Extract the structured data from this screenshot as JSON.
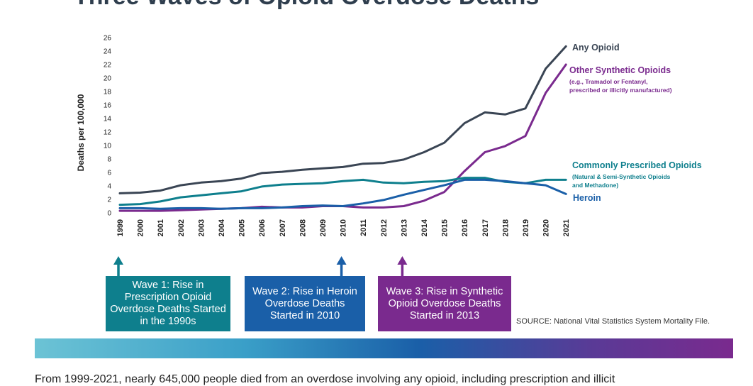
{
  "title": "Three Waves of Opioid Overdose Deaths",
  "chart_data": {
    "type": "line",
    "ylabel": "Deaths per 100,000",
    "xlabel": "",
    "ylim": [
      0,
      26
    ],
    "yticks": [
      0,
      2,
      4,
      6,
      8,
      10,
      12,
      14,
      16,
      18,
      20,
      22,
      24,
      26
    ],
    "x": [
      "1999",
      "2000",
      "2001",
      "2002",
      "2003",
      "2004",
      "2005",
      "2006",
      "2007",
      "2008",
      "2009",
      "2010",
      "2011",
      "2012",
      "2013",
      "2014",
      "2015",
      "2016",
      "2017",
      "2018",
      "2019",
      "2020",
      "2021"
    ],
    "series": [
      {
        "name": "Any Opioid",
        "color": "#3a4554",
        "values": [
          2.9,
          3.0,
          3.3,
          4.1,
          4.5,
          4.7,
          5.1,
          5.9,
          6.1,
          6.4,
          6.6,
          6.8,
          7.3,
          7.4,
          7.9,
          9.0,
          10.4,
          13.3,
          14.9,
          14.6,
          15.5,
          21.4,
          24.7
        ],
        "label_lines": [
          {
            "text": "Any Opioid",
            "size": "large"
          }
        ]
      },
      {
        "name": "Other Synthetic Opioids",
        "color": "#7a2a8e",
        "values": [
          0.3,
          0.3,
          0.3,
          0.4,
          0.5,
          0.6,
          0.7,
          0.9,
          0.8,
          0.8,
          1.0,
          1.0,
          0.8,
          0.8,
          1.0,
          1.8,
          3.1,
          6.2,
          9.0,
          9.9,
          11.4,
          17.8,
          22.0
        ],
        "label_lines": [
          {
            "text": "Other Synthetic Opioids",
            "size": "large"
          },
          {
            "text": "(e.g., Tramadol or Fentanyl,",
            "size": "small"
          },
          {
            "text": "prescribed or illicitly manufactured)",
            "size": "small"
          }
        ]
      },
      {
        "name": "Commonly Prescribed Opioids",
        "color": "#0e7f8d",
        "values": [
          1.2,
          1.3,
          1.7,
          2.3,
          2.6,
          2.9,
          3.2,
          3.9,
          4.2,
          4.3,
          4.4,
          4.7,
          4.9,
          4.5,
          4.4,
          4.6,
          4.7,
          5.2,
          5.2,
          4.6,
          4.4,
          4.9,
          4.9
        ],
        "label_lines": [
          {
            "text": "Commonly Prescribed Opioids",
            "size": "large"
          },
          {
            "text": "(Natural & Semi-Synthetic Opioids",
            "size": "small"
          },
          {
            "text": "and Methadone)",
            "size": "small"
          }
        ]
      },
      {
        "name": "Heroin",
        "color": "#1a5fa8",
        "values": [
          0.7,
          0.7,
          0.6,
          0.7,
          0.7,
          0.6,
          0.7,
          0.7,
          0.8,
          1.0,
          1.1,
          1.0,
          1.4,
          1.9,
          2.7,
          3.4,
          4.1,
          4.9,
          4.9,
          4.7,
          4.4,
          4.1,
          2.8
        ],
        "label_lines": [
          {
            "text": "Heroin",
            "size": "large"
          }
        ]
      }
    ],
    "wave_markers": [
      {
        "year": "1999",
        "color": "#0e7f8d"
      },
      {
        "year": "2010",
        "color": "#1a5fa8"
      },
      {
        "year": "2013",
        "color": "#7a2a8e"
      }
    ]
  },
  "waves": [
    {
      "label": "Wave 1: Rise in Prescription Opioid Overdose Deaths Started in the 1990s"
    },
    {
      "label": "Wave 2: Rise in Heroin Overdose Deaths Started in 2010"
    },
    {
      "label": "Wave 3: Rise in Synthetic Opioid Overdose Deaths Started in 2013"
    }
  ],
  "source": "SOURCE: National Vital Statistics System Mortality File.",
  "body_text": "From 1999-2021, nearly 645,000 people died from an overdose involving any opioid, including prescription and illicit"
}
